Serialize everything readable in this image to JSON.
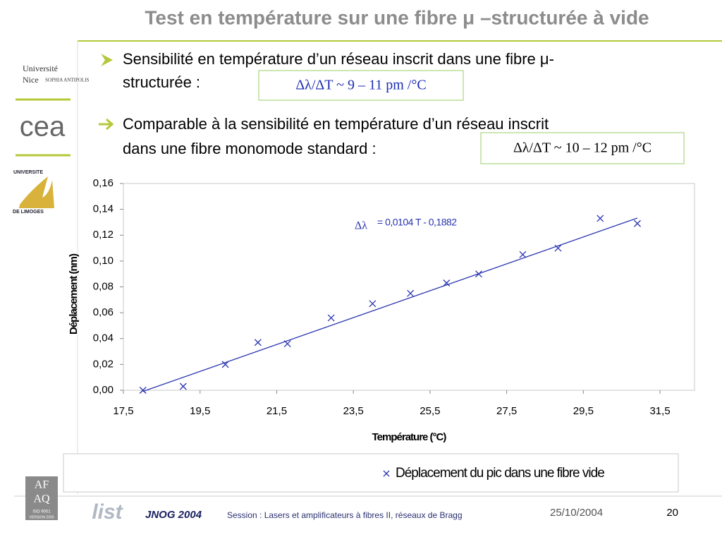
{
  "slide": {
    "title": "Test en température sur une fibre μ –structurée à vide",
    "bullets": [
      {
        "lines": [
          "Sensibilité en température d’un réseau inscrit dans une fibre μ-",
          "structurée :"
        ],
        "box": "Δλ/ΔT ~  9 – 11 pm /°C"
      },
      {
        "lines": [
          "Comparable à la sensibilité en température d’un réseau inscrit",
          "dans une fibre monomode standard :"
        ],
        "box": "Δλ/ΔT ~  10 – 12 pm /°C"
      }
    ],
    "logos": {
      "nice": [
        "Université",
        "Nice",
        "SOPHIA ANTIPOLIS"
      ],
      "cea": "cea",
      "limoges": [
        "UNIVERSITE",
        "DE LIMOGES"
      ],
      "afaq": [
        "AF",
        "AQ",
        "ISO 9001",
        "VERSION 2000"
      ],
      "list": "list"
    },
    "footer": {
      "event": "JNOG 2004",
      "session": "Session : Lasers et amplificateurs à fibres II, réseaux de Bragg",
      "date": "25/10/2004",
      "page": "20"
    }
  },
  "chart_data": {
    "type": "scatter",
    "x_label": "Température (°C)",
    "y_label": "Déplacement (nm)",
    "xlim": [
      17.5,
      32.4
    ],
    "ylim": [
      0,
      0.16
    ],
    "xticks": [
      {
        "value": 17.5,
        "label": "17,5"
      },
      {
        "value": 19.5,
        "label": "19,5"
      },
      {
        "value": 21.5,
        "label": "21,5"
      },
      {
        "value": 23.5,
        "label": "23,5"
      },
      {
        "value": 25.5,
        "label": "25,5"
      },
      {
        "value": 27.5,
        "label": "27,5"
      },
      {
        "value": 29.5,
        "label": "29,5"
      },
      {
        "value": 31.5,
        "label": "31,5"
      }
    ],
    "yticks": [
      {
        "value": 0,
        "label": "0,00"
      },
      {
        "value": 0.02,
        "label": "0,02"
      },
      {
        "value": 0.04,
        "label": "0,04"
      },
      {
        "value": 0.06,
        "label": "0,06"
      },
      {
        "value": 0.08,
        "label": "0,08"
      },
      {
        "value": 0.1,
        "label": "0,10"
      },
      {
        "value": 0.12,
        "label": "0,12"
      },
      {
        "value": 0.14,
        "label": "0,14"
      },
      {
        "value": 0.16,
        "label": "0,16"
      }
    ],
    "series": [
      {
        "name": "Déplacement du pic dans une fibre vide",
        "color": "#2a35b0",
        "x": [
          18.01,
          19.06,
          20.16,
          21.01,
          21.78,
          22.92,
          24.0,
          24.99,
          25.93,
          26.77,
          27.92,
          28.84,
          29.94,
          30.91
        ],
        "values": [
          0.0,
          0.003,
          0.02,
          0.037,
          0.036,
          0.056,
          0.067,
          0.075,
          0.083,
          0.09,
          0.105,
          0.11,
          0.133,
          0.129
        ]
      }
    ],
    "trendline": {
      "symbol": "Δλ",
      "label": "= 0,0104 T - 0,1882",
      "slope": 0.0104,
      "intercept": -0.1882,
      "color": "#2a35b0"
    },
    "legend": "bottom"
  }
}
